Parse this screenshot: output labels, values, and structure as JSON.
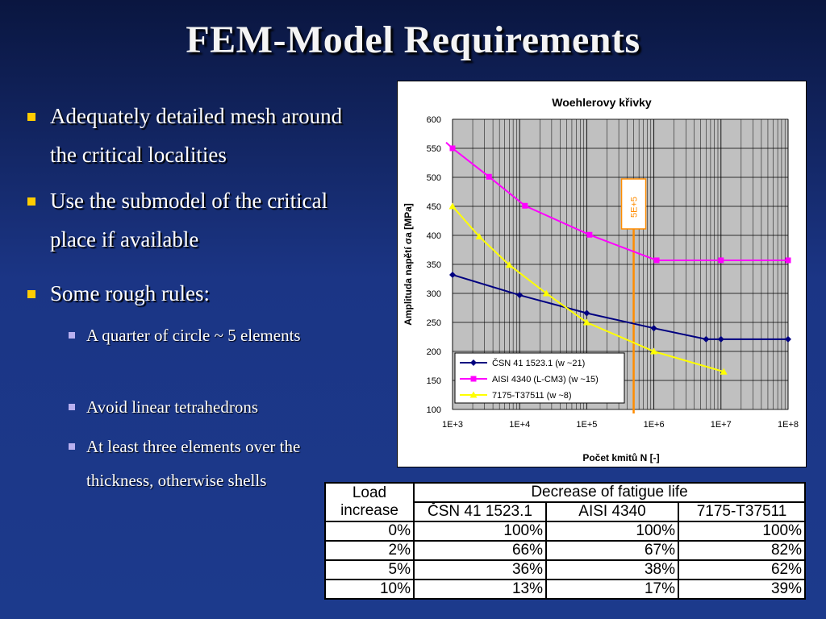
{
  "slide": {
    "title": "FEM-Model Requirements",
    "bullets": [
      {
        "level": 1,
        "text": "Adequately detailed mesh around the critical localities"
      },
      {
        "level": 1,
        "text": "Use the submodel of the critical place if available"
      },
      {
        "level": 1,
        "text": "Some rough rules:"
      },
      {
        "level": 2,
        "text": "A quarter of circle ~ 5 elements"
      },
      {
        "level": 2,
        "text": "Avoid linear tetrahedrons"
      },
      {
        "level": 2,
        "text": "At least three elements over the thickness, otherwise shells"
      }
    ],
    "colors": {
      "bullet_l1": "#ffcc00",
      "bullet_l2": "#b9b0f0",
      "background": "#1b3585"
    }
  },
  "chart_data": {
    "type": "line",
    "title": "Woehlerovy křivky",
    "xlabel": "Počet kmitů N [-]",
    "ylabel": "Amplituda napětí σa [MPa]",
    "x_scale": "log",
    "x_ticks": [
      "1E+3",
      "1E+4",
      "1E+5",
      "1E+6",
      "1E+7",
      "1E+8"
    ],
    "y_ticks": [
      "100",
      "150",
      "200",
      "250",
      "300",
      "350",
      "400",
      "450",
      "500",
      "550",
      "600"
    ],
    "ylim": [
      100,
      600
    ],
    "xlim": [
      1000,
      100000000
    ],
    "grid": true,
    "plot_background": "#c0c0c0",
    "legend_position": "lower-left",
    "series": [
      {
        "name": "ČSN 41 1523.1 (w ~21)",
        "color": "#000080",
        "marker": "diamond",
        "x": [
          1000,
          10000,
          100000,
          1000000,
          6000000,
          10000000,
          100000000
        ],
        "y": [
          332,
          297,
          266,
          240,
          221,
          221,
          221
        ]
      },
      {
        "name": "AISI 4340 (L-CM3) (w ~15)",
        "color": "#ff00ff",
        "marker": "square",
        "x": [
          800,
          1000,
          3500,
          12000,
          110000,
          1100000,
          10000000,
          100000000
        ],
        "y": [
          560,
          550,
          501,
          451,
          401,
          357,
          357,
          357
        ]
      },
      {
        "name": "7175-T37511 (w ~8)",
        "color": "#ffff00",
        "marker": "triangle",
        "x": [
          1000,
          2500,
          7000,
          25000,
          100000,
          1000000,
          11000000
        ],
        "y": [
          450,
          398,
          349,
          300,
          250,
          200,
          165
        ]
      }
    ],
    "marker_line": {
      "x": 500000,
      "label": "5E+5",
      "color": "#ff8c00"
    }
  },
  "table": {
    "header_col": "Load increase",
    "header_group": "Decrease of fatigue life",
    "columns": [
      "ČSN 41 1523.1",
      "AISI 4340",
      "7175-T37511"
    ],
    "rows": [
      {
        "load": "0%",
        "values": [
          "100%",
          "100%",
          "100%"
        ]
      },
      {
        "load": "2%",
        "values": [
          "66%",
          "67%",
          "82%"
        ]
      },
      {
        "load": "5%",
        "values": [
          "36%",
          "38%",
          "62%"
        ]
      },
      {
        "load": "10%",
        "values": [
          "13%",
          "17%",
          "39%"
        ]
      }
    ]
  }
}
